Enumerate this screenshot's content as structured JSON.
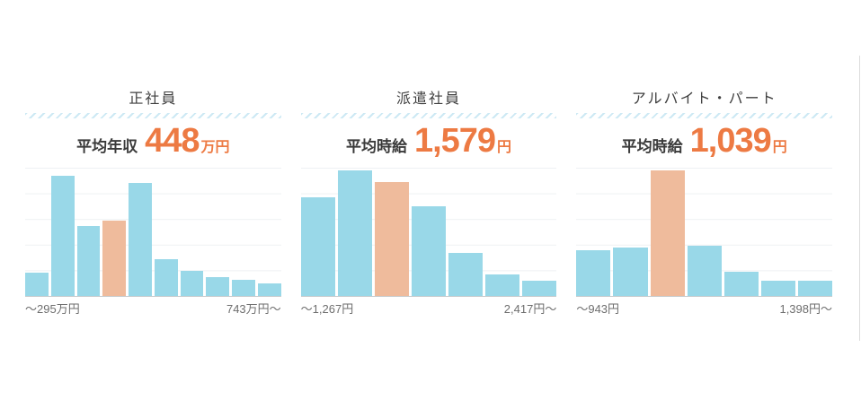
{
  "colors": {
    "background": "#ffffff",
    "bar_blue": "#99d8e8",
    "bar_orange": "#efbb9c",
    "accent_orange": "#ed7a43",
    "title_text": "#3f3f3f",
    "axis_label_text": "#6e6e6e",
    "gridline": "#eef1f3",
    "baseline": "#c6cbcd",
    "hatch_stripe": "#cde9f4"
  },
  "chart_data": [
    {
      "type": "bar",
      "title": "正社員",
      "average_label": "平均年収",
      "average_value": "448",
      "average_unit": "万円",
      "values": [
        18,
        94,
        55,
        59,
        88,
        29,
        20,
        15,
        13,
        10
      ],
      "values_unit": "percent_of_y_axis_max",
      "highlight_index": 3,
      "highlight_meaning": "bin containing the average",
      "x_left_label": "～295万円",
      "x_right_label": "743万円～",
      "xlabel": "",
      "ylabel": "",
      "ylim": [
        0,
        100
      ],
      "gridline_interval": 20,
      "y_tick_labels_visible": false,
      "bar_color": "#99d8e8",
      "highlight_color": "#efbb9c"
    },
    {
      "type": "bar",
      "title": "派遣社員",
      "average_label": "平均時給",
      "average_value": "1,579",
      "average_unit": "円",
      "values": [
        77,
        98,
        89,
        70,
        34,
        17,
        12
      ],
      "values_unit": "percent_of_y_axis_max",
      "highlight_index": 2,
      "highlight_meaning": "bin containing the average",
      "x_left_label": "～1,267円",
      "x_right_label": "2,417円～",
      "xlabel": "",
      "ylabel": "",
      "ylim": [
        0,
        100
      ],
      "gridline_interval": 20,
      "y_tick_labels_visible": false,
      "bar_color": "#99d8e8",
      "highlight_color": "#efbb9c"
    },
    {
      "type": "bar",
      "title": "アルバイト・パート",
      "average_label": "平均時給",
      "average_value": "1,039",
      "average_unit": "円",
      "values": [
        36,
        38,
        98,
        39,
        19,
        12,
        12
      ],
      "values_unit": "percent_of_y_axis_max",
      "highlight_index": 2,
      "highlight_meaning": "bin containing the average",
      "x_left_label": "～943円",
      "x_right_label": "1,398円～",
      "xlabel": "",
      "ylabel": "",
      "ylim": [
        0,
        100
      ],
      "gridline_interval": 20,
      "y_tick_labels_visible": false,
      "bar_color": "#99d8e8",
      "highlight_color": "#efbb9c"
    }
  ]
}
